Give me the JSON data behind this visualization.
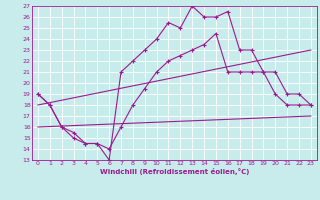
{
  "xlabel": "Windchill (Refroidissement éolien,°C)",
  "bg_color": "#c8ecec",
  "grid_color": "#ffffff",
  "line_color": "#9b1b8e",
  "xlim": [
    -0.5,
    23.5
  ],
  "ylim": [
    13,
    27
  ],
  "xticks": [
    0,
    1,
    2,
    3,
    4,
    5,
    6,
    7,
    8,
    9,
    10,
    11,
    12,
    13,
    14,
    15,
    16,
    17,
    18,
    19,
    20,
    21,
    22,
    23
  ],
  "yticks": [
    13,
    14,
    15,
    16,
    17,
    18,
    19,
    20,
    21,
    22,
    23,
    24,
    25,
    26,
    27
  ],
  "lines": [
    {
      "x": [
        0,
        1,
        2,
        3,
        4,
        5,
        6,
        7,
        8,
        9,
        10,
        11,
        12,
        13,
        14,
        15,
        16,
        17,
        18,
        19,
        20,
        21,
        22,
        23
      ],
      "y": [
        19,
        18,
        16,
        15,
        14.5,
        14.5,
        13,
        21,
        22,
        23,
        24,
        25.5,
        25,
        27,
        26,
        26,
        26.5,
        23,
        23,
        21,
        19,
        18,
        18,
        18
      ],
      "marker": true
    },
    {
      "x": [
        0,
        1,
        2,
        3,
        4,
        5,
        6,
        7,
        8,
        9,
        10,
        11,
        12,
        13,
        14,
        15,
        16,
        17,
        18,
        19,
        20,
        21,
        22,
        23
      ],
      "y": [
        19,
        18,
        16,
        15.5,
        14.5,
        14.5,
        14,
        16,
        18,
        19.5,
        21,
        22,
        22.5,
        23,
        23.5,
        24.5,
        21,
        21,
        21,
        21,
        21,
        19,
        19,
        18
      ],
      "marker": true
    },
    {
      "x": [
        0,
        23
      ],
      "y": [
        18,
        23
      ],
      "marker": false
    },
    {
      "x": [
        0,
        23
      ],
      "y": [
        16,
        17
      ],
      "marker": false
    }
  ]
}
